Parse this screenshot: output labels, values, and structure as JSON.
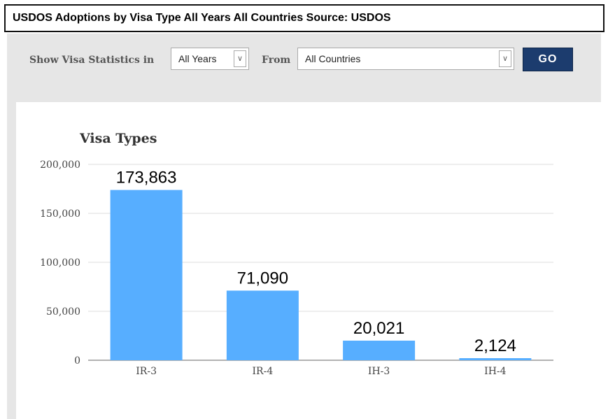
{
  "window": {
    "title": "USDOS Adoptions by Visa Type All Years All Countries Source: USDOS"
  },
  "controls": {
    "show_label": "Show Visa Statistics in",
    "year_select": {
      "value": "All Years"
    },
    "from_label": "From",
    "country_select": {
      "value": "All Countries"
    },
    "go_label": "GO"
  },
  "chart_data": {
    "type": "bar",
    "title": "Visa Types",
    "xlabel": "",
    "ylabel": "",
    "categories": [
      "IR-3",
      "IR-4",
      "IH-3",
      "IH-4"
    ],
    "values": [
      173863,
      71090,
      20021,
      2124
    ],
    "value_labels": [
      "173,863",
      "71,090",
      "20,021",
      "2,124"
    ],
    "ylim": [
      0,
      200000
    ],
    "yticks": [
      0,
      50000,
      100000,
      150000,
      200000
    ],
    "ytick_labels": [
      "0",
      "50,000",
      "100,000",
      "150,000",
      "200,000"
    ],
    "grid": true,
    "legend": "none",
    "bar_color": "#57aeff"
  }
}
